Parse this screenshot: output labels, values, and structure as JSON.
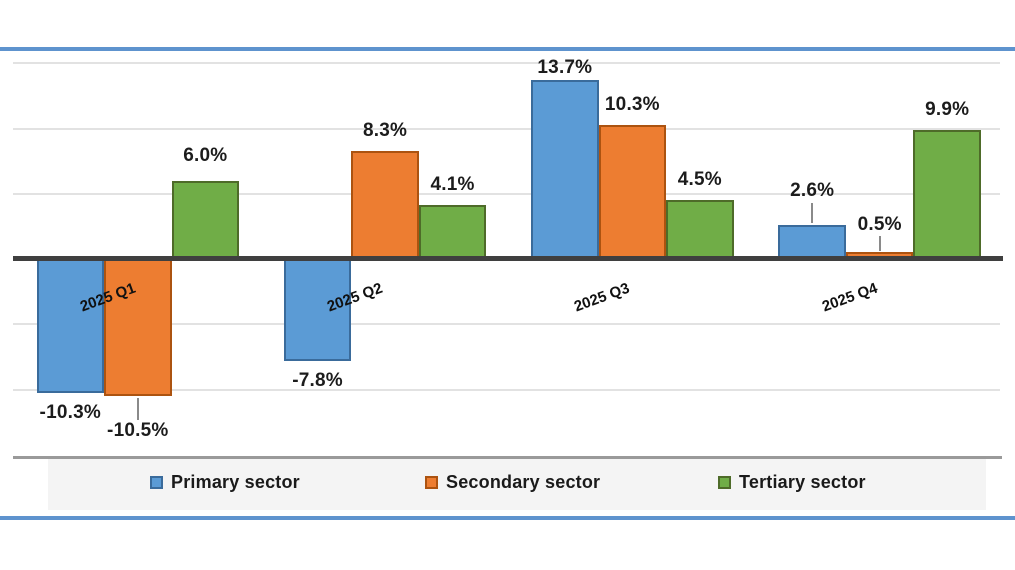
{
  "chart_data": {
    "type": "bar",
    "title": "",
    "categories": [
      "2025 Q1",
      "2025 Q2",
      "2025 Q3",
      "2025 Q4"
    ],
    "series": [
      {
        "name": "Primary sector",
        "color": "#5b9bd5",
        "border_color": "#3a6b9b",
        "values": [
          -10.3,
          -7.8,
          13.7,
          2.6
        ],
        "labels": [
          "-10.3%",
          "-7.8%",
          "13.7%",
          "2.6%"
        ]
      },
      {
        "name": "Secondary sector",
        "color": "#ed7d31",
        "border_color": "#ac5310",
        "values": [
          -10.5,
          8.3,
          10.3,
          0.5
        ],
        "labels": [
          "-10.5%",
          "8.3%",
          "10.3%",
          "0.5%"
        ]
      },
      {
        "name": "Tertiary sector",
        "color": "#70ad47",
        "border_color": "#4e6b29",
        "values": [
          6.0,
          4.1,
          4.5,
          9.9
        ],
        "labels": [
          "6.0%",
          "4.1%",
          "4.5%",
          "9.9%"
        ]
      }
    ],
    "ylim": [
      -15,
      15
    ],
    "gridlines": [
      15,
      10,
      5,
      -5,
      -10
    ],
    "grid": true,
    "value_axis_visible": false,
    "legend_position": "bottom",
    "accent_rule_color": "#5e93ce",
    "axis_color": "#3f3f3f"
  }
}
